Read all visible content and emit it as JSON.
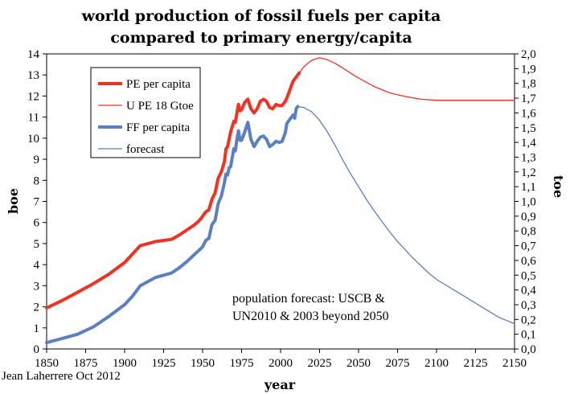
{
  "chart_data": {
    "type": "line",
    "title": [
      "world production of fossil fuels per capita",
      "compared to primary energy/capita"
    ],
    "xlabel": "year",
    "ylabel": "boe",
    "y2label": "toe",
    "xlim": [
      1850,
      2150
    ],
    "ylim": [
      0,
      14
    ],
    "y2lim": [
      0,
      2.0
    ],
    "xticks": [
      "1850",
      "1875",
      "1900",
      "1925",
      "1950",
      "1975",
      "2000",
      "2025",
      "2050",
      "2075",
      "2100",
      "2125",
      "2150"
    ],
    "yticks": [
      "0",
      "1",
      "2",
      "3",
      "4",
      "5",
      "6",
      "7",
      "8",
      "9",
      "10",
      "11",
      "12",
      "13",
      "14"
    ],
    "y2ticks": [
      "0,0",
      "0,1",
      "0,2",
      "0,3",
      "0,4",
      "0,5",
      "0,6",
      "0,7",
      "0,8",
      "0,9",
      "1,0",
      "1,1",
      "1,2",
      "1,3",
      "1,4",
      "1,5",
      "1,6",
      "1,7",
      "1,8",
      "1,9",
      "2,0"
    ],
    "legend": {
      "placement": "top-left",
      "entries": [
        {
          "label": "PE per capita",
          "color": "#ee3322",
          "style": "thick"
        },
        {
          "label": "U PE 18 Gtoe",
          "color": "#ee3322",
          "style": "thin"
        },
        {
          "label": "FF per capita",
          "color": "#5a7fc4",
          "style": "thick"
        },
        {
          "label": "forecast",
          "color": "#5a7fc4",
          "style": "thin"
        }
      ]
    },
    "annotation": [
      "population forecast: USCB &",
      "UN2010 & 2003 beyond 2050"
    ],
    "credit": "Jean Laherrere Oct 2012",
    "series": [
      {
        "name": "PE per capita",
        "color": "#ee3322",
        "width": 4,
        "points": [
          [
            1850,
            1.95
          ],
          [
            1860,
            2.3
          ],
          [
            1870,
            2.7
          ],
          [
            1880,
            3.1
          ],
          [
            1890,
            3.55
          ],
          [
            1900,
            4.1
          ],
          [
            1905,
            4.5
          ],
          [
            1910,
            4.9
          ],
          [
            1915,
            5.0
          ],
          [
            1920,
            5.1
          ],
          [
            1925,
            5.15
          ],
          [
            1930,
            5.2
          ],
          [
            1935,
            5.4
          ],
          [
            1940,
            5.65
          ],
          [
            1945,
            5.9
          ],
          [
            1948,
            6.1
          ],
          [
            1950,
            6.3
          ],
          [
            1952,
            6.5
          ],
          [
            1954,
            6.6
          ],
          [
            1956,
            7.1
          ],
          [
            1958,
            7.4
          ],
          [
            1960,
            8.1
          ],
          [
            1962,
            8.4
          ],
          [
            1964,
            8.9
          ],
          [
            1965,
            9.5
          ],
          [
            1966,
            9.6
          ],
          [
            1967,
            9.95
          ],
          [
            1968,
            10.3
          ],
          [
            1970,
            10.8
          ],
          [
            1971,
            10.75
          ],
          [
            1972,
            11.2
          ],
          [
            1973,
            11.6
          ],
          [
            1974,
            11.3
          ],
          [
            1975,
            11.35
          ],
          [
            1977,
            11.7
          ],
          [
            1979,
            11.85
          ],
          [
            1981,
            11.4
          ],
          [
            1983,
            11.2
          ],
          [
            1985,
            11.4
          ],
          [
            1987,
            11.75
          ],
          [
            1989,
            11.85
          ],
          [
            1991,
            11.75
          ],
          [
            1993,
            11.45
          ],
          [
            1995,
            11.4
          ],
          [
            1997,
            11.6
          ],
          [
            1999,
            11.55
          ],
          [
            2001,
            11.55
          ],
          [
            2003,
            11.75
          ],
          [
            2004,
            11.9
          ],
          [
            2006,
            12.3
          ],
          [
            2008,
            12.7
          ],
          [
            2010,
            12.9
          ],
          [
            2012,
            13.1
          ]
        ]
      },
      {
        "name": "U PE 18 Gtoe",
        "color": "#ee3322",
        "width": 1.3,
        "points": [
          [
            2012,
            13.1
          ],
          [
            2015,
            13.4
          ],
          [
            2020,
            13.7
          ],
          [
            2025,
            13.82
          ],
          [
            2030,
            13.72
          ],
          [
            2035,
            13.55
          ],
          [
            2040,
            13.32
          ],
          [
            2050,
            12.85
          ],
          [
            2060,
            12.45
          ],
          [
            2070,
            12.15
          ],
          [
            2080,
            11.98
          ],
          [
            2090,
            11.85
          ],
          [
            2100,
            11.8
          ],
          [
            2150,
            11.8
          ]
        ]
      },
      {
        "name": "FF per capita",
        "color": "#5a7fc4",
        "width": 4,
        "points": [
          [
            1850,
            0.3
          ],
          [
            1860,
            0.5
          ],
          [
            1870,
            0.7
          ],
          [
            1880,
            1.05
          ],
          [
            1890,
            1.55
          ],
          [
            1900,
            2.1
          ],
          [
            1905,
            2.5
          ],
          [
            1910,
            3.0
          ],
          [
            1915,
            3.2
          ],
          [
            1920,
            3.4
          ],
          [
            1925,
            3.5
          ],
          [
            1930,
            3.6
          ],
          [
            1935,
            3.85
          ],
          [
            1940,
            4.15
          ],
          [
            1945,
            4.5
          ],
          [
            1948,
            4.7
          ],
          [
            1950,
            4.85
          ],
          [
            1952,
            5.15
          ],
          [
            1954,
            5.25
          ],
          [
            1956,
            5.9
          ],
          [
            1958,
            6.1
          ],
          [
            1960,
            6.9
          ],
          [
            1962,
            7.25
          ],
          [
            1964,
            7.9
          ],
          [
            1965,
            8.3
          ],
          [
            1966,
            8.25
          ],
          [
            1967,
            8.6
          ],
          [
            1968,
            8.65
          ],
          [
            1970,
            9.5
          ],
          [
            1971,
            9.4
          ],
          [
            1972,
            9.95
          ],
          [
            1973,
            10.35
          ],
          [
            1974,
            9.9
          ],
          [
            1975,
            9.9
          ],
          [
            1977,
            10.3
          ],
          [
            1979,
            10.75
          ],
          [
            1981,
            9.95
          ],
          [
            1983,
            9.6
          ],
          [
            1985,
            9.85
          ],
          [
            1987,
            10.05
          ],
          [
            1989,
            10.1
          ],
          [
            1991,
            9.95
          ],
          [
            1993,
            9.6
          ],
          [
            1995,
            9.7
          ],
          [
            1997,
            9.85
          ],
          [
            1999,
            9.8
          ],
          [
            2001,
            9.85
          ],
          [
            2003,
            10.25
          ],
          [
            2004,
            10.7
          ],
          [
            2006,
            10.9
          ],
          [
            2008,
            11.1
          ],
          [
            2009,
            10.95
          ],
          [
            2010,
            11.4
          ],
          [
            2011,
            11.5
          ]
        ]
      },
      {
        "name": "forecast",
        "color": "#5a7fc4",
        "width": 1.3,
        "points": [
          [
            2011,
            11.5
          ],
          [
            2015,
            11.45
          ],
          [
            2020,
            11.25
          ],
          [
            2025,
            10.85
          ],
          [
            2030,
            10.3
          ],
          [
            2035,
            9.65
          ],
          [
            2040,
            8.95
          ],
          [
            2045,
            8.3
          ],
          [
            2050,
            7.7
          ],
          [
            2055,
            7.1
          ],
          [
            2060,
            6.55
          ],
          [
            2065,
            6.05
          ],
          [
            2070,
            5.55
          ],
          [
            2075,
            5.1
          ],
          [
            2080,
            4.7
          ],
          [
            2085,
            4.3
          ],
          [
            2090,
            3.95
          ],
          [
            2095,
            3.6
          ],
          [
            2100,
            3.3
          ],
          [
            2110,
            2.85
          ],
          [
            2120,
            2.4
          ],
          [
            2130,
            1.95
          ],
          [
            2140,
            1.5
          ],
          [
            2150,
            1.2
          ]
        ]
      }
    ]
  }
}
